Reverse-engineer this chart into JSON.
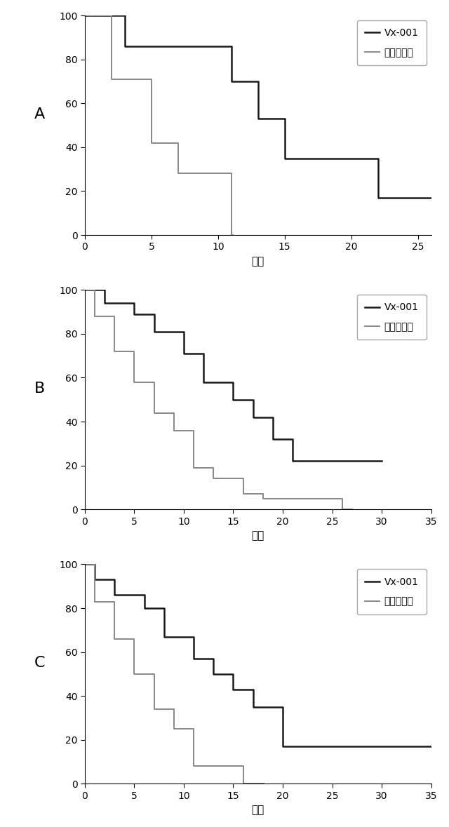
{
  "panel_A": {
    "vx001_x": [
      0,
      3,
      3,
      11,
      11,
      13,
      13,
      15,
      15,
      22,
      22,
      26
    ],
    "vx001_y": [
      100,
      100,
      86,
      86,
      70,
      70,
      53,
      53,
      35,
      35,
      17,
      17
    ],
    "placebo_x": [
      0,
      2,
      2,
      5,
      5,
      7,
      7,
      11,
      11,
      11.1
    ],
    "placebo_y": [
      100,
      100,
      71,
      71,
      42,
      42,
      28,
      28,
      0,
      0
    ],
    "xlim": [
      0,
      26
    ],
    "xticks": [
      0,
      5,
      10,
      15,
      20,
      25
    ],
    "ylim": [
      0,
      100
    ],
    "yticks": [
      0,
      20,
      40,
      60,
      80,
      100
    ]
  },
  "panel_B": {
    "vx001_x": [
      0,
      2,
      2,
      5,
      5,
      7,
      7,
      10,
      10,
      12,
      12,
      15,
      15,
      17,
      17,
      19,
      19,
      21,
      21,
      26,
      26,
      30
    ],
    "vx001_y": [
      100,
      100,
      94,
      94,
      89,
      89,
      81,
      81,
      71,
      71,
      58,
      58,
      50,
      50,
      42,
      42,
      32,
      32,
      22,
      22,
      22,
      22
    ],
    "placebo_x": [
      0,
      1,
      1,
      3,
      3,
      5,
      5,
      7,
      7,
      9,
      9,
      11,
      11,
      13,
      13,
      16,
      16,
      18,
      18,
      20,
      20,
      26,
      26,
      27
    ],
    "placebo_y": [
      100,
      100,
      88,
      88,
      72,
      72,
      58,
      58,
      44,
      44,
      36,
      36,
      19,
      19,
      14,
      14,
      7,
      7,
      5,
      5,
      5,
      5,
      0,
      0
    ],
    "xlim": [
      0,
      35
    ],
    "xticks": [
      0,
      5,
      10,
      15,
      20,
      25,
      30,
      35
    ],
    "ylim": [
      0,
      100
    ],
    "yticks": [
      0,
      20,
      40,
      60,
      80,
      100
    ]
  },
  "panel_C": {
    "vx001_x": [
      0,
      1,
      1,
      3,
      3,
      6,
      6,
      8,
      8,
      11,
      11,
      13,
      13,
      15,
      15,
      17,
      17,
      20,
      20,
      25,
      25,
      35
    ],
    "vx001_y": [
      100,
      100,
      93,
      93,
      86,
      86,
      80,
      80,
      67,
      67,
      57,
      57,
      50,
      50,
      43,
      43,
      35,
      35,
      17,
      17,
      17,
      17
    ],
    "placebo_x": [
      0,
      1,
      1,
      3,
      3,
      5,
      5,
      7,
      7,
      9,
      9,
      11,
      11,
      13,
      13,
      16,
      16,
      18,
      18,
      18.1
    ],
    "placebo_y": [
      100,
      100,
      83,
      83,
      66,
      66,
      50,
      50,
      34,
      34,
      25,
      25,
      8,
      8,
      8,
      8,
      0,
      0,
      0,
      0
    ],
    "xlim": [
      0,
      35
    ],
    "xticks": [
      0,
      5,
      10,
      15,
      20,
      25,
      30,
      35
    ],
    "ylim": [
      0,
      100
    ],
    "yticks": [
      0,
      20,
      40,
      60,
      80,
      100
    ]
  },
  "color_vx001": "#1a1a1a",
  "color_placebo": "#888888",
  "lw_vx001": 1.8,
  "lw_placebo": 1.4,
  "xlabel": "時間",
  "legend_vx001": "Vx-001",
  "legend_placebo": "プラシーボ",
  "panel_labels": [
    "A",
    "B",
    "C"
  ],
  "fig_facecolor": "#ffffff",
  "ax_facecolor": "#ffffff"
}
